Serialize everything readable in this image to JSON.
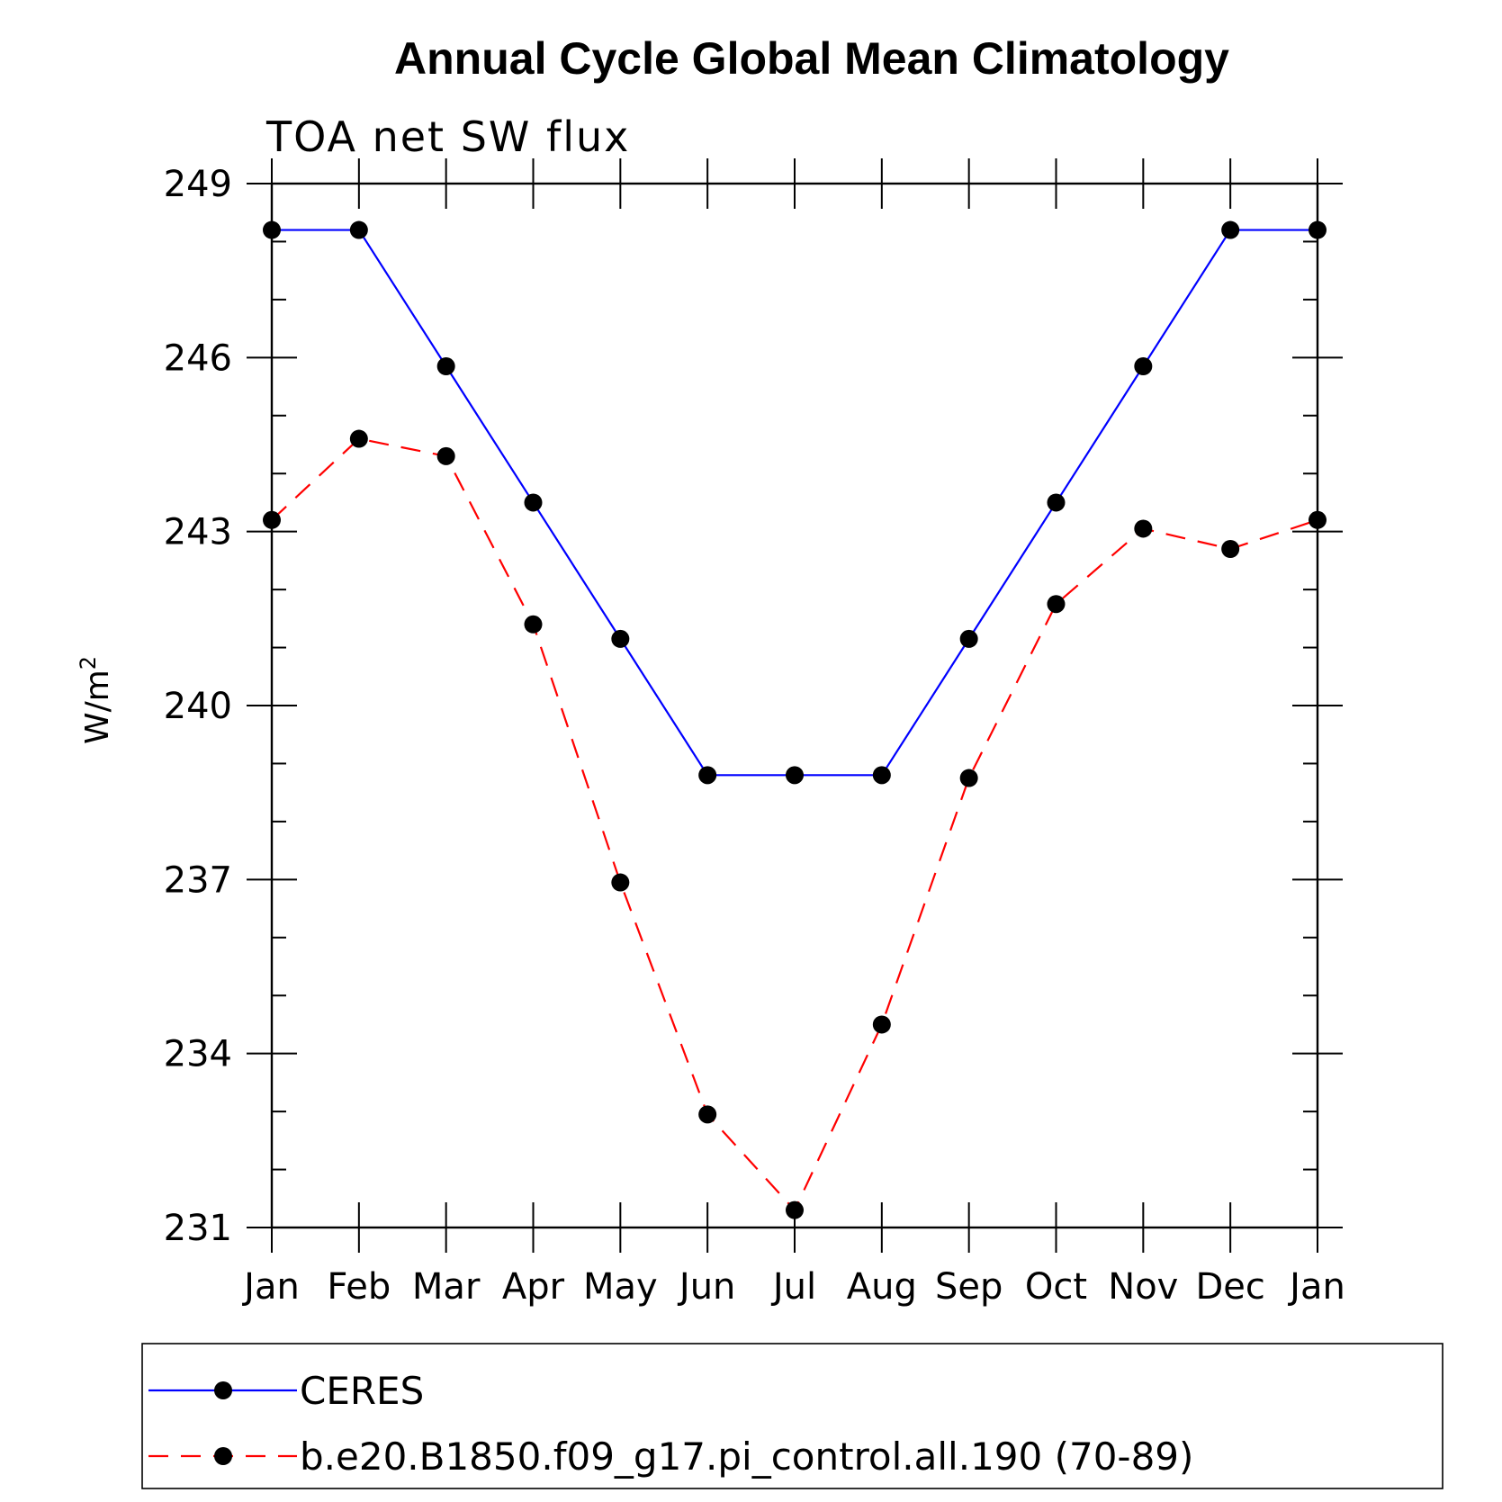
{
  "chart_data": {
    "type": "line",
    "title": "Annual Cycle Global Mean Climatology",
    "subtitle": "TOA net SW flux",
    "ylabel": "W/m",
    "ylabel_sup": "2",
    "xlabel": "",
    "categories": [
      "Jan",
      "Feb",
      "Mar",
      "Apr",
      "May",
      "Jun",
      "Jul",
      "Aug",
      "Sep",
      "Oct",
      "Nov",
      "Dec",
      "Jan"
    ],
    "ylim": [
      231,
      249
    ],
    "yticks": [
      231,
      234,
      237,
      240,
      243,
      246,
      249
    ],
    "series": [
      {
        "name": "CERES",
        "color": "#0000ff",
        "dash": "solid",
        "marker": "filled-circle",
        "values": [
          248.2,
          248.2,
          245.85,
          243.5,
          241.15,
          238.8,
          238.8,
          238.8,
          241.15,
          243.5,
          245.85,
          248.2,
          248.2
        ]
      },
      {
        "name": "b.e20.B1850.f09_g17.pi_control.all.190 (70-89)",
        "color": "#ff0000",
        "dash": "dashed",
        "marker": "filled-circle",
        "values": [
          243.2,
          244.6,
          244.3,
          241.4,
          236.95,
          232.95,
          231.3,
          234.5,
          238.75,
          241.75,
          243.05,
          242.7,
          243.2
        ]
      }
    ],
    "grid": false,
    "legend_position": "bottom"
  }
}
